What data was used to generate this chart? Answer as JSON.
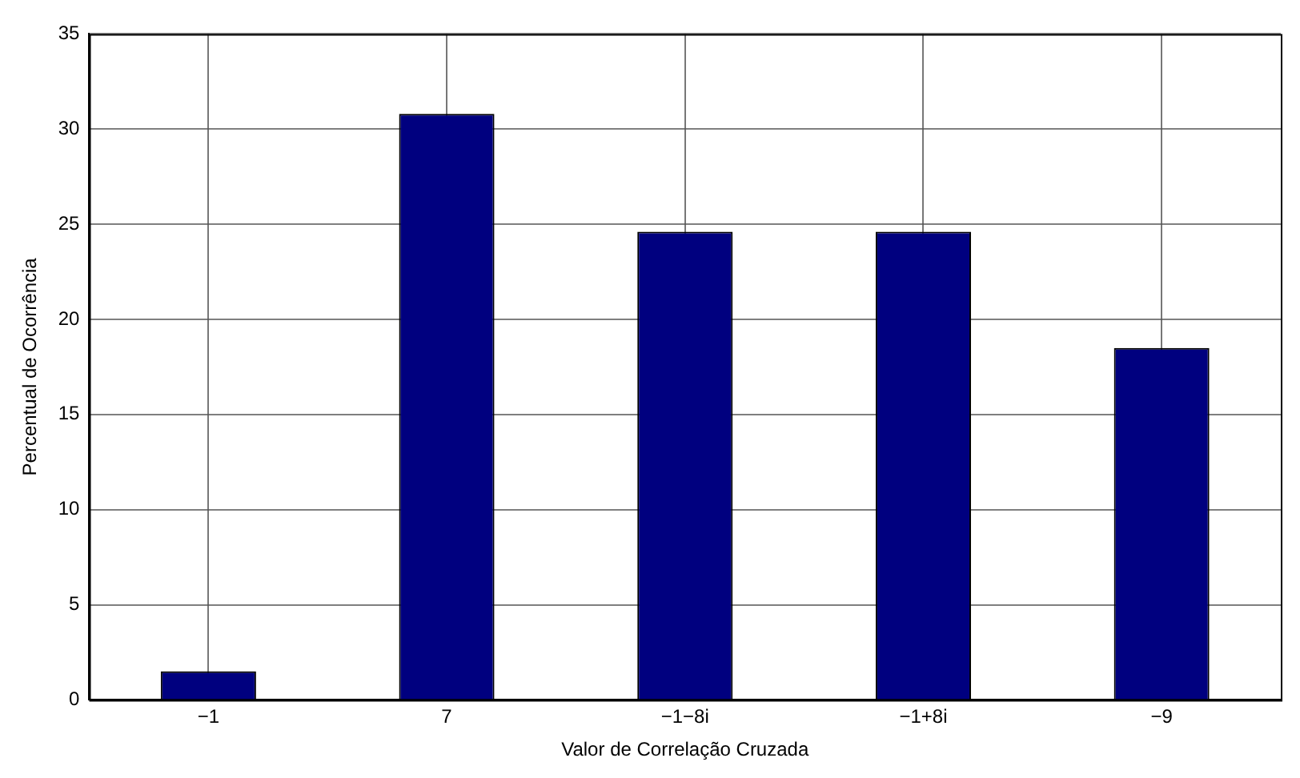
{
  "chart_data": {
    "type": "bar",
    "xlabel": "Valor de Correlação Cruzada",
    "ylabel": "Percentual de Ocorrência",
    "categories": [
      "−1",
      "7",
      "−1−8i",
      "−1+8i",
      "−9"
    ],
    "values": [
      1.5,
      30.8,
      24.6,
      24.6,
      18.5
    ],
    "color": "#00007f",
    "ylim": [
      0,
      35
    ],
    "yticks": [
      0,
      5,
      10,
      15,
      20,
      25,
      30,
      35
    ],
    "grid": true
  }
}
